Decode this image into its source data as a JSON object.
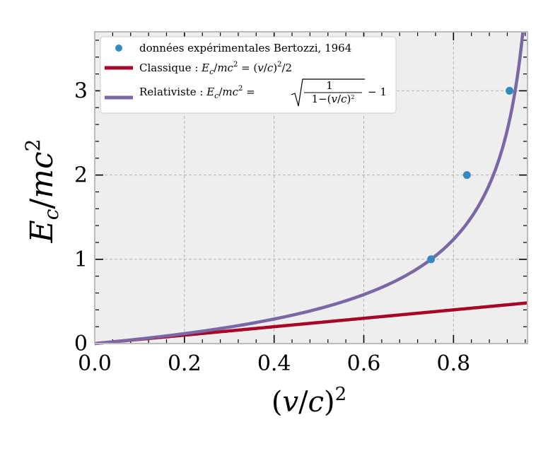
{
  "chart_data": {
    "type": "line",
    "xlabel": "(v/c)²",
    "ylabel": "Ec/mc²",
    "xlim": [
      0,
      0.965
    ],
    "ylim": [
      0,
      3.7
    ],
    "xticks": [
      "0.0",
      "0.2",
      "0.4",
      "0.6",
      "0.8"
    ],
    "yticks": [
      "0",
      "1",
      "2",
      "3"
    ],
    "grid": true,
    "legend_position": "top-left",
    "background_color": "#eeeeee",
    "series": [
      {
        "name": "données expérimentales Bertozzi, 1964",
        "kind": "scatter",
        "color": "#348abd",
        "x": [
          0.75,
          0.83,
          0.925
        ],
        "y": [
          1,
          2,
          3
        ]
      },
      {
        "name": "Classique : Ec/mc² = (v/c)²/2",
        "kind": "line",
        "color": "#a60628",
        "formula": "y = x/2"
      },
      {
        "name": "Relativiste : Ec/mc² = √(1/(1−(v/c)²)) − 1",
        "kind": "line",
        "color": "#7a68a6",
        "formula": "y = 1/sqrt(1-x) - 1"
      }
    ]
  }
}
